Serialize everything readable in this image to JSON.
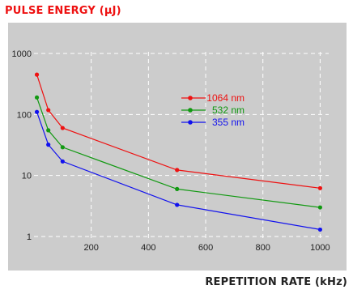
{
  "chart_data": {
    "type": "line",
    "ylabel": "PULSE ENERGY (μJ)",
    "xlabel": "REPETITION RATE (kHz)",
    "y_scale": "log",
    "ylim": [
      1,
      1000
    ],
    "xlim": [
      0,
      1030
    ],
    "x_ticks": [
      "200",
      "400",
      "600",
      "800",
      "1000"
    ],
    "y_ticks": [
      "1",
      "10",
      "100",
      "1000"
    ],
    "grid": true,
    "legend_position": "center-right",
    "series": [
      {
        "name": "1064 nm",
        "color": "#ee1111",
        "x": [
          10,
          50,
          100,
          500,
          1000
        ],
        "y": [
          450,
          118,
          60,
          12.3,
          6.2
        ]
      },
      {
        "name": "532 nm",
        "color": "#119911",
        "x": [
          10,
          50,
          100,
          500,
          1000
        ],
        "y": [
          190,
          55,
          29,
          6,
          3
        ]
      },
      {
        "name": "355 nm",
        "color": "#1111ee",
        "x": [
          10,
          50,
          100,
          500,
          1000
        ],
        "y": [
          110,
          32,
          17,
          3.3,
          1.3
        ]
      }
    ]
  },
  "colors": {
    "title": "#ee1111",
    "panel_bg": "#cccccc",
    "grid": "#ffffff",
    "axis_text": "#222222"
  }
}
